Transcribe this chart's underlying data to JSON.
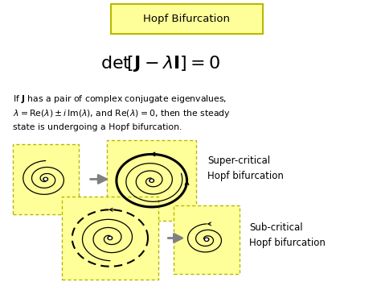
{
  "bg_color": "#ffffff",
  "title_box_text": "Hopf Bifurcation",
  "title_box_facecolor": "#ffff99",
  "title_box_edgecolor": "#b8b800",
  "yellow_fill": "#ffff99",
  "yellow_border": "#b8b800",
  "spiral_color": "#000000",
  "arrow_color": "#808080",
  "dot_color": "#ffffff",
  "dot_edgecolor": "#000000",
  "label_super": "Super-critical\nHopf bifurcation",
  "label_sub": "Sub-critical\nHopf bifurcation",
  "body_line1": "If $\\mathbf{J}$ has a pair of complex conjugate eigenvalues,",
  "body_line2": "$\\lambda = \\mathrm{Re}(\\lambda) \\pm i\\, \\mathrm{Im}(\\lambda)$, and $\\mathrm{Re}(\\lambda) = 0$, then the steady",
  "body_line3": "state is undergoing a Hopf bifurcation."
}
